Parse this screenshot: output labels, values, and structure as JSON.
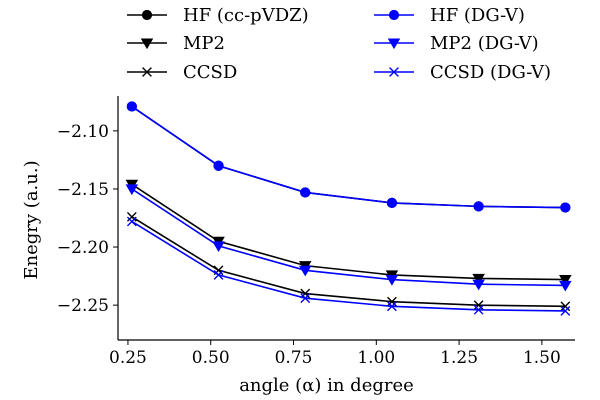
{
  "chart_data": {
    "type": "line",
    "xlabel": "angle (α) in degree",
    "ylabel": "Enegry (a.u.)",
    "xlim": [
      0.22,
      1.6
    ],
    "ylim": [
      -2.28,
      -2.07
    ],
    "xticks": [
      "0.25",
      "0.50",
      "0.75",
      "1.00",
      "1.25",
      "1.50"
    ],
    "xtick_values": [
      0.25,
      0.5,
      0.75,
      1.0,
      1.25,
      1.5
    ],
    "yticks": [
      "−2.10",
      "−2.15",
      "−2.20",
      "−2.25"
    ],
    "ytick_values": [
      -2.1,
      -2.15,
      -2.2,
      -2.25
    ],
    "grid": false,
    "legend_position": "top",
    "x": [
      0.2618,
      0.5236,
      0.7854,
      1.0472,
      1.309,
      1.5708
    ],
    "series": [
      {
        "name": "HF (cc-pVDZ)",
        "color": "#000000",
        "marker": "circle",
        "values": [
          -2.079,
          -2.13,
          -2.153,
          -2.162,
          -2.165,
          -2.166
        ]
      },
      {
        "name": "MP2",
        "color": "#000000",
        "marker": "triangle-down",
        "values": [
          -2.146,
          -2.195,
          -2.216,
          -2.224,
          -2.227,
          -2.228
        ]
      },
      {
        "name": "CCSD",
        "color": "#000000",
        "marker": "x",
        "values": [
          -2.174,
          -2.22,
          -2.24,
          -2.247,
          -2.25,
          -2.251
        ]
      },
      {
        "name": "HF (DG-V)",
        "color": "#0000ff",
        "marker": "circle",
        "values": [
          -2.079,
          -2.13,
          -2.153,
          -2.162,
          -2.165,
          -2.166
        ]
      },
      {
        "name": "MP2 (DG-V)",
        "color": "#0000ff",
        "marker": "triangle-down",
        "values": [
          -2.15,
          -2.199,
          -2.22,
          -2.228,
          -2.232,
          -2.233
        ]
      },
      {
        "name": "CCSD (DG-V)",
        "color": "#0000ff",
        "marker": "x",
        "values": [
          -2.178,
          -2.224,
          -2.244,
          -2.251,
          -2.254,
          -2.255
        ]
      }
    ]
  }
}
